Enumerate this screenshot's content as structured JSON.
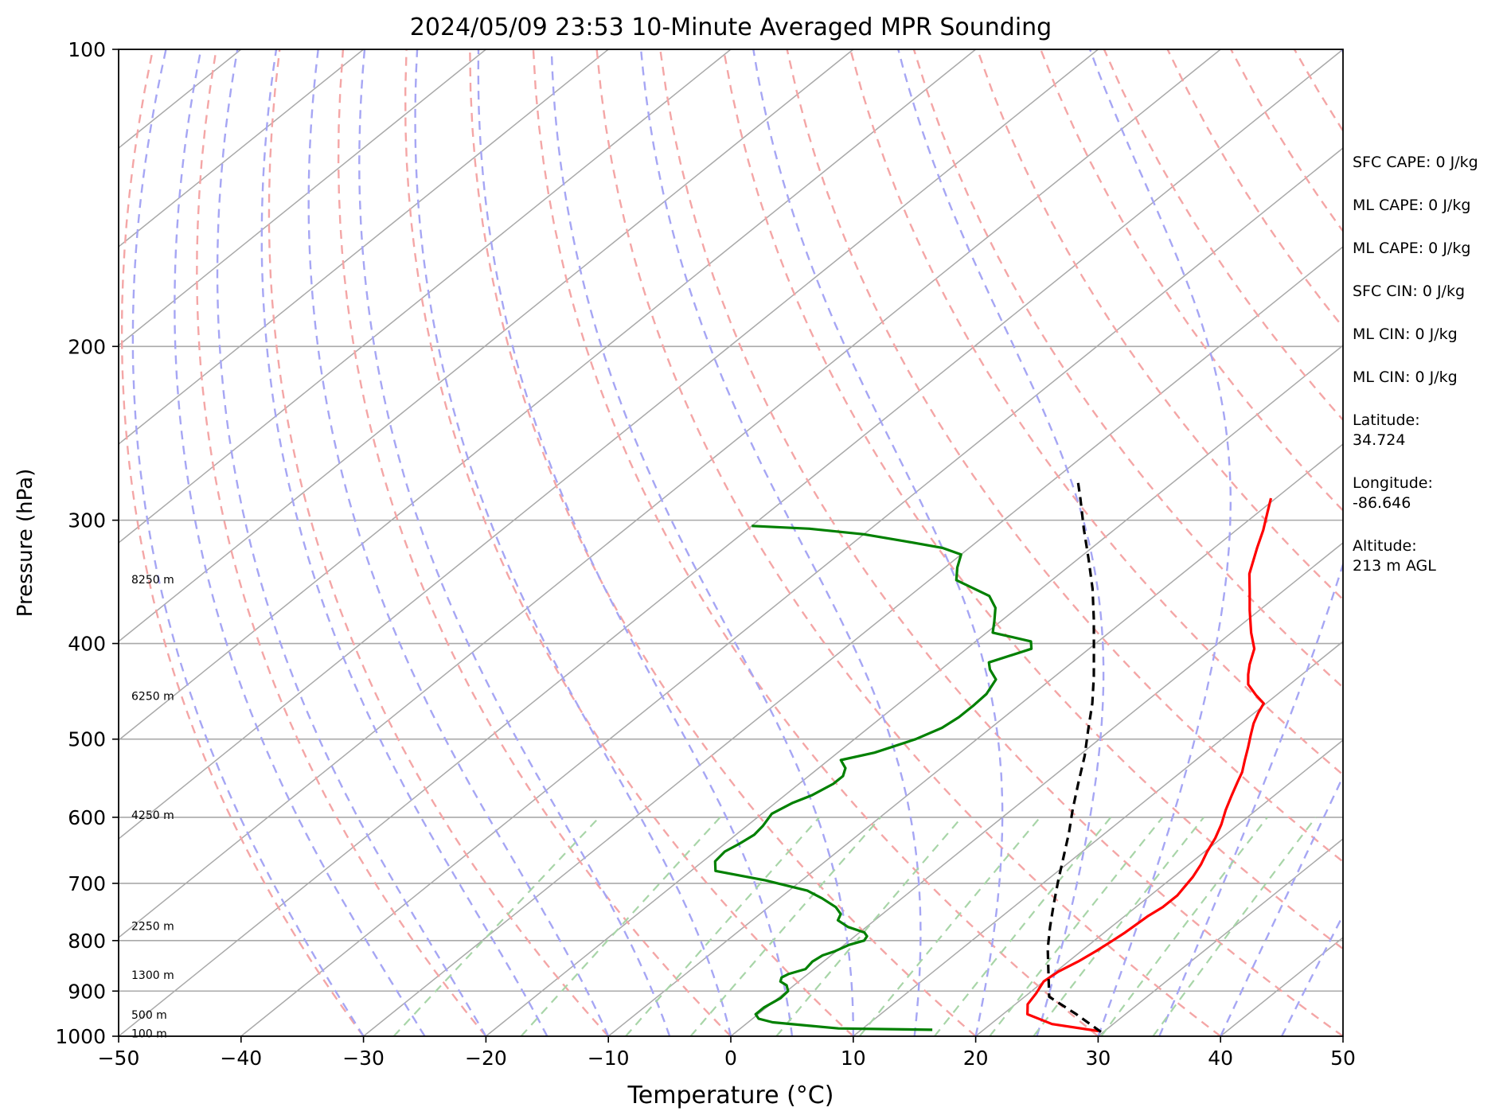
{
  "chart_data": {
    "type": "line",
    "title": "2024/05/09 23:53 10-Minute Averaged MPR Sounding",
    "xlabel": "Temperature (°C)",
    "ylabel": "Pressure (hPa)",
    "xlim": [
      -50,
      50
    ],
    "ylim": [
      1000,
      100
    ],
    "y_scale": "log",
    "x_ticks": [
      "−50",
      "−40",
      "−30",
      "−20",
      "−10",
      "0",
      "10",
      "20",
      "30",
      "40",
      "50"
    ],
    "y_ticks": [
      "1000",
      "900",
      "800",
      "700",
      "600",
      "500",
      "400",
      "300",
      "200",
      "100"
    ],
    "grid": true,
    "skew": true,
    "colors": {
      "temperature": "#ff0000",
      "dewpoint": "#008000",
      "parcel": "#000000",
      "isotherm": "#a9a9a9",
      "dry_adiabat": "#f4a6a6",
      "moist_adiabat": "#a6a6f4",
      "mixing_ratio": "#a8d5a8"
    },
    "series": [
      {
        "role": "temperature",
        "points": [
          [
            29.5,
            988
          ],
          [
            25,
            972
          ],
          [
            22,
            950
          ],
          [
            21,
            928
          ],
          [
            20.6,
            905
          ],
          [
            20,
            880
          ],
          [
            20.2,
            860
          ],
          [
            20.8,
            840
          ],
          [
            21.2,
            820
          ],
          [
            21.5,
            800
          ],
          [
            21.7,
            785
          ],
          [
            21.8,
            770
          ],
          [
            21.9,
            755
          ],
          [
            22.2,
            740
          ],
          [
            22.2,
            720
          ],
          [
            21.9,
            705
          ],
          [
            21.6,
            690
          ],
          [
            21,
            670
          ],
          [
            20.2,
            650
          ],
          [
            19.5,
            630
          ],
          [
            18.6,
            610
          ],
          [
            17.5,
            590
          ],
          [
            16.5,
            570
          ],
          [
            15.6,
            552
          ],
          [
            15,
            540
          ],
          [
            14,
            525
          ],
          [
            13,
            510
          ],
          [
            12,
            496
          ],
          [
            11,
            482
          ],
          [
            10.3,
            470
          ],
          [
            9.8,
            460
          ],
          [
            8.3,
            451
          ],
          [
            6.6,
            440
          ],
          [
            5.6,
            430
          ],
          [
            4.7,
            420
          ],
          [
            3.5,
            405
          ],
          [
            1.6,
            390
          ],
          [
            -0.8,
            370
          ],
          [
            -2.6,
            355
          ],
          [
            -4.5,
            340
          ],
          [
            -6.5,
            320
          ],
          [
            -7.8,
            307
          ],
          [
            -9.2,
            295
          ],
          [
            -10.4,
            285
          ]
        ]
      },
      {
        "role": "dewpoint",
        "points": [
          [
            15.8,
            985
          ],
          [
            8,
            982
          ],
          [
            5,
            975
          ],
          [
            2,
            968
          ],
          [
            0.5,
            960
          ],
          [
            -0.2,
            950
          ],
          [
            -0.2,
            935
          ],
          [
            0.2,
            915
          ],
          [
            0.1,
            900
          ],
          [
            -0.6,
            888
          ],
          [
            -1.5,
            880
          ],
          [
            -1.8,
            872
          ],
          [
            -1.6,
            865
          ],
          [
            -0.7,
            855
          ],
          [
            -0.9,
            840
          ],
          [
            -0.7,
            828
          ],
          [
            -0.1,
            820
          ],
          [
            0.4,
            808
          ],
          [
            1.2,
            800
          ],
          [
            1,
            792
          ],
          [
            0.4,
            785
          ],
          [
            -1.5,
            775
          ],
          [
            -3,
            763
          ],
          [
            -3.4,
            752
          ],
          [
            -4.5,
            740
          ],
          [
            -6.5,
            725
          ],
          [
            -8.5,
            712
          ],
          [
            -13,
            695
          ],
          [
            -18,
            680
          ],
          [
            -19,
            665
          ],
          [
            -19.2,
            650
          ],
          [
            -18.8,
            638
          ],
          [
            -18.5,
            625
          ],
          [
            -18.7,
            612
          ],
          [
            -19.2,
            595
          ],
          [
            -18.6,
            580
          ],
          [
            -17.8,
            570
          ],
          [
            -17.2,
            555
          ],
          [
            -17.2,
            545
          ],
          [
            -17.8,
            535
          ],
          [
            -19,
            525
          ],
          [
            -17,
            516
          ],
          [
            -15,
            500
          ],
          [
            -14,
            487
          ],
          [
            -13.7,
            475
          ],
          [
            -13.7,
            462
          ],
          [
            -13.8,
            450
          ],
          [
            -14.5,
            435
          ],
          [
            -16,
            425
          ],
          [
            -16.8,
            418
          ],
          [
            -14.7,
            405
          ],
          [
            -15.5,
            398
          ],
          [
            -19.5,
            390
          ],
          [
            -20.5,
            380
          ],
          [
            -21.8,
            368
          ],
          [
            -23.5,
            358
          ],
          [
            -27.8,
            345
          ],
          [
            -29,
            335
          ],
          [
            -30,
            325
          ],
          [
            -32.2,
            320
          ],
          [
            -36,
            315
          ],
          [
            -40,
            310
          ],
          [
            -45,
            306
          ],
          [
            -50,
            304
          ]
        ]
      },
      {
        "role": "parcel",
        "points": [
          [
            29.8,
            990
          ],
          [
            26,
            950
          ],
          [
            22,
            912
          ],
          [
            17,
            815
          ],
          [
            15,
            775
          ],
          [
            13,
            735
          ],
          [
            11,
            696
          ],
          [
            9,
            658
          ],
          [
            7,
            622
          ],
          [
            5,
            590
          ],
          [
            2.8,
            555
          ],
          [
            0.5,
            520
          ],
          [
            -1.8,
            490
          ],
          [
            -4.2,
            460
          ],
          [
            -6.8,
            432
          ],
          [
            -9.6,
            405
          ],
          [
            -12.6,
            378
          ],
          [
            -15.8,
            352
          ],
          [
            -19.2,
            328
          ],
          [
            -22.6,
            306
          ],
          [
            -25.8,
            286
          ],
          [
            -27.7,
            275
          ]
        ]
      }
    ],
    "height_labels": [
      {
        "label": "8250 m",
        "p": 345
      },
      {
        "label": "6250 m",
        "p": 453
      },
      {
        "label": "4250 m",
        "p": 598
      },
      {
        "label": "2250 m",
        "p": 775
      },
      {
        "label": "1300 m",
        "p": 868
      },
      {
        "label": "500 m",
        "p": 953
      },
      {
        "label": "100 m",
        "p": 995
      }
    ],
    "side_info": [
      [
        "SFC CAPE: 0 J/kg"
      ],
      [
        "ML CAPE: 0 J/kg"
      ],
      [
        "ML CAPE: 0 J/kg"
      ],
      [
        "SFC CIN: 0 J/kg"
      ],
      [
        "ML CIN: 0 J/kg"
      ],
      [
        "ML CIN: 0 J/kg"
      ],
      [
        "Latitude:",
        "34.724"
      ],
      [
        "Longitude:",
        "-86.646"
      ],
      [
        "Altitude:",
        "213 m AGL"
      ]
    ]
  }
}
